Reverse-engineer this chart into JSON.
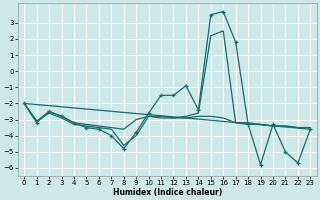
{
  "xlabel": "Humidex (Indice chaleur)",
  "xlim": [
    -0.5,
    23.5
  ],
  "ylim": [
    -6.5,
    4.2
  ],
  "yticks": [
    -6,
    -5,
    -4,
    -3,
    -2,
    -1,
    0,
    1,
    2,
    3
  ],
  "xticks": [
    0,
    1,
    2,
    3,
    4,
    5,
    6,
    7,
    8,
    9,
    10,
    11,
    12,
    13,
    14,
    15,
    16,
    17,
    18,
    19,
    20,
    21,
    22,
    23
  ],
  "bg_color": "#cde8e8",
  "line_color": "#1a6b6b",
  "grid_color": "#ffffff",
  "lines": [
    {
      "x": [
        0,
        1,
        2,
        3,
        4,
        5,
        6,
        7,
        8,
        9,
        10,
        11,
        12,
        13,
        14,
        15,
        16,
        17,
        18,
        19,
        20,
        21,
        22,
        23
      ],
      "y": [
        -2.0,
        -3.2,
        -2.5,
        -2.8,
        -3.2,
        -3.5,
        -3.6,
        -4.0,
        -4.8,
        -3.8,
        -2.6,
        -1.5,
        -1.5,
        -0.9,
        -2.4,
        3.5,
        3.7,
        1.8,
        -3.3,
        -5.8,
        -3.3,
        -5.0,
        -5.7,
        -3.6
      ],
      "marker": true
    },
    {
      "x": [
        0,
        1,
        2,
        3,
        4,
        5,
        6,
        7,
        8,
        9,
        10,
        11,
        12,
        13,
        14,
        15,
        16,
        17,
        18,
        19,
        20,
        21,
        22,
        23
      ],
      "y": [
        -2.0,
        -3.1,
        -2.5,
        -2.8,
        -3.2,
        -3.3,
        -3.4,
        -3.5,
        -3.6,
        -3.0,
        -2.8,
        -2.8,
        -2.9,
        -2.8,
        -2.6,
        2.2,
        2.5,
        -3.2,
        -3.3,
        -3.3,
        -3.4,
        -3.4,
        -3.5,
        -3.5
      ],
      "marker": false
    },
    {
      "x": [
        0,
        1,
        2,
        3,
        4,
        5,
        6,
        7,
        8,
        9,
        10,
        11,
        12,
        13,
        14,
        15,
        16,
        17,
        18,
        19,
        20,
        21,
        22,
        23
      ],
      "y": [
        -2.0,
        -3.1,
        -2.6,
        -2.9,
        -3.3,
        -3.4,
        -3.5,
        -3.6,
        -4.6,
        -4.0,
        -2.8,
        -2.9,
        -2.9,
        -2.9,
        -2.8,
        -2.8,
        -2.9,
        -3.2,
        -3.2,
        -3.3,
        -3.4,
        -3.4,
        -3.5,
        -3.5
      ],
      "marker": false
    },
    {
      "x": [
        0,
        23
      ],
      "y": [
        -2.0,
        -3.6
      ],
      "marker": false
    }
  ]
}
